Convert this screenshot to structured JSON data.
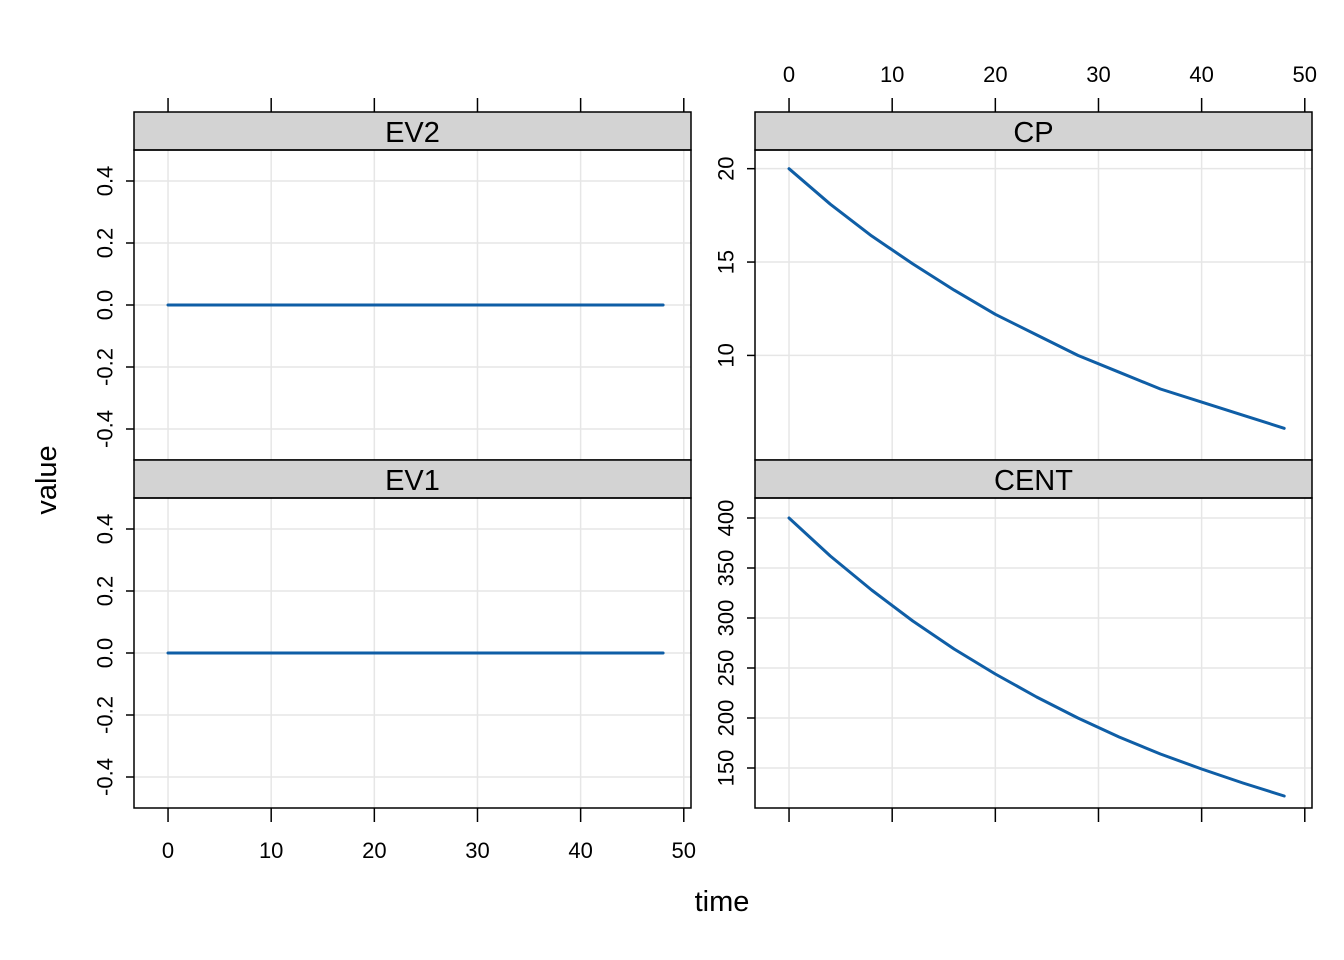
{
  "chart_data": {
    "type": "line",
    "layout": "trellis 2x2",
    "xlabel": "time",
    "ylabel": "value",
    "xlim": [
      -3.3,
      50.7
    ],
    "xticks": [
      0,
      10,
      20,
      30,
      40,
      50
    ],
    "grid": true,
    "line_color": "#0f5ea6",
    "strip_color": "#d3d3d3",
    "grid_color": "#e6e6e6",
    "panels": [
      {
        "name": "EV2",
        "ylim": [
          -0.5,
          0.5
        ],
        "yticks": [
          "-0.4",
          "-0.2",
          "0.0",
          "0.2",
          "0.4"
        ],
        "x": [
          0,
          48
        ],
        "y": [
          0,
          0
        ]
      },
      {
        "name": "CP",
        "ylim": [
          4.4,
          21.0
        ],
        "yticks": [
          "10",
          "15",
          "20"
        ],
        "x": [
          0,
          4,
          8,
          12,
          16,
          20,
          24,
          28,
          32,
          36,
          40,
          44,
          48
        ],
        "y": [
          20.0,
          18.1,
          16.4,
          14.9,
          13.5,
          12.2,
          11.1,
          10.0,
          9.1,
          8.2,
          7.5,
          6.8,
          6.1
        ]
      },
      {
        "name": "EV1",
        "ylim": [
          -0.5,
          0.5
        ],
        "yticks": [
          "-0.4",
          "-0.2",
          "0.0",
          "0.2",
          "0.4"
        ],
        "x": [
          0,
          48
        ],
        "y": [
          0,
          0
        ]
      },
      {
        "name": "CENT",
        "ylim": [
          110,
          420
        ],
        "yticks": [
          "150",
          "200",
          "250",
          "300",
          "350",
          "400"
        ],
        "x": [
          0,
          4,
          8,
          12,
          16,
          20,
          24,
          28,
          32,
          36,
          40,
          44,
          48
        ],
        "y": [
          400,
          362,
          328,
          297,
          269,
          244,
          221,
          200,
          181,
          164,
          149,
          135,
          122
        ]
      }
    ]
  }
}
